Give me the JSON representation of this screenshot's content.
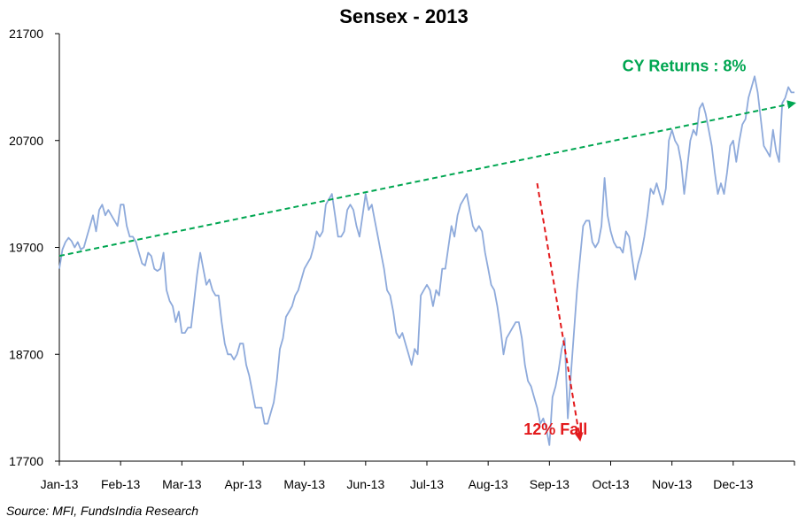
{
  "chart_data": {
    "type": "line",
    "title": "Sensex - 2013",
    "xlabel": "",
    "ylabel": "",
    "ylim": [
      17700,
      21700
    ],
    "yticks": [
      "21700",
      "20700",
      "19700",
      "18700",
      "17700"
    ],
    "categories": [
      "Jan-13",
      "Feb-13",
      "Mar-13",
      "Apr-13",
      "May-13",
      "Jun-13",
      "Jul-13",
      "Aug-13",
      "Sep-13",
      "Oct-13",
      "Nov-13",
      "Dec-13"
    ],
    "grid": false,
    "line_color": "#8eaadb",
    "series": [
      {
        "x": [
          0,
          0.05,
          0.1,
          0.15,
          0.2,
          0.25,
          0.3,
          0.35,
          0.4,
          0.45,
          0.5,
          0.55,
          0.6,
          0.65,
          0.7,
          0.75,
          0.8,
          0.85,
          0.9,
          0.95,
          1.0,
          1.05,
          1.1,
          1.15,
          1.2,
          1.25,
          1.3,
          1.35,
          1.4,
          1.45,
          1.5,
          1.55,
          1.6,
          1.65,
          1.7,
          1.75,
          1.8,
          1.85,
          1.9,
          1.95,
          2.0,
          2.05,
          2.1,
          2.15,
          2.2,
          2.25,
          2.3,
          2.35,
          2.4,
          2.45,
          2.5,
          2.55,
          2.6,
          2.65,
          2.7,
          2.75,
          2.8,
          2.85,
          2.9,
          2.95,
          3.0,
          3.05,
          3.1,
          3.15,
          3.2,
          3.25,
          3.3,
          3.35,
          3.4,
          3.45,
          3.5,
          3.55,
          3.6,
          3.65,
          3.7,
          3.75,
          3.8,
          3.85,
          3.9,
          3.95,
          4.0,
          4.05,
          4.1,
          4.15,
          4.2,
          4.25,
          4.3,
          4.35,
          4.4,
          4.45,
          4.5,
          4.55,
          4.6,
          4.65,
          4.7,
          4.75,
          4.8,
          4.85,
          4.9,
          4.95,
          5.0,
          5.05,
          5.1,
          5.15,
          5.2,
          5.25,
          5.3,
          5.35,
          5.4,
          5.45,
          5.5,
          5.55,
          5.6,
          5.65,
          5.7,
          5.75,
          5.8,
          5.85,
          5.9,
          5.95,
          6.0,
          6.05,
          6.1,
          6.15,
          6.2,
          6.25,
          6.3,
          6.35,
          6.4,
          6.45,
          6.5,
          6.55,
          6.6,
          6.65,
          6.7,
          6.75,
          6.8,
          6.85,
          6.9,
          6.95,
          7.0,
          7.05,
          7.1,
          7.15,
          7.2,
          7.25,
          7.3,
          7.35,
          7.4,
          7.45,
          7.5,
          7.55,
          7.6,
          7.65,
          7.7,
          7.75,
          7.8,
          7.85,
          7.9,
          7.95,
          8.0,
          8.05,
          8.1,
          8.15,
          8.2,
          8.25,
          8.3,
          8.35,
          8.4,
          8.45,
          8.5,
          8.55,
          8.6,
          8.65,
          8.7,
          8.75,
          8.8,
          8.85,
          8.9,
          8.95,
          9.0,
          9.05,
          9.1,
          9.15,
          9.2,
          9.25,
          9.3,
          9.35,
          9.4,
          9.45,
          9.5,
          9.55,
          9.6,
          9.65,
          9.7,
          9.75,
          9.8,
          9.85,
          9.9,
          9.95,
          10.0,
          10.05,
          10.1,
          10.15,
          10.2,
          10.25,
          10.3,
          10.35,
          10.4,
          10.45,
          10.5,
          10.55,
          10.6,
          10.65,
          10.7,
          10.75,
          10.8,
          10.85,
          10.9,
          10.95,
          11.0,
          11.05,
          11.1,
          11.15,
          11.2,
          11.25,
          11.3,
          11.35,
          11.4,
          11.45,
          11.5,
          11.55,
          11.6,
          11.65,
          11.7,
          11.75,
          11.8,
          11.85,
          11.9,
          11.95,
          12.0
        ],
        "y": [
          19500,
          19680,
          19750,
          19790,
          19760,
          19700,
          19750,
          19680,
          19700,
          19800,
          19900,
          20000,
          19850,
          20050,
          20100,
          20000,
          20050,
          20000,
          19950,
          19900,
          20100,
          20100,
          19900,
          19800,
          19800,
          19750,
          19650,
          19550,
          19530,
          19650,
          19620,
          19500,
          19480,
          19500,
          19650,
          19300,
          19200,
          19150,
          19000,
          19100,
          18900,
          18900,
          18950,
          18950,
          19200,
          19450,
          19650,
          19500,
          19350,
          19400,
          19300,
          19250,
          19250,
          19000,
          18800,
          18700,
          18700,
          18650,
          18700,
          18800,
          18800,
          18600,
          18500,
          18350,
          18200,
          18200,
          18200,
          18050,
          18050,
          18150,
          18250,
          18450,
          18750,
          18850,
          19050,
          19100,
          19150,
          19250,
          19300,
          19400,
          19500,
          19550,
          19600,
          19700,
          19850,
          19800,
          19850,
          20100,
          20150,
          20200,
          20000,
          19800,
          19800,
          19850,
          20050,
          20100,
          20050,
          19900,
          19800,
          20000,
          20200,
          20050,
          20100,
          19950,
          19800,
          19650,
          19500,
          19300,
          19250,
          19100,
          18900,
          18850,
          18900,
          18800,
          18700,
          18600,
          18750,
          18700,
          19250,
          19300,
          19350,
          19300,
          19150,
          19300,
          19250,
          19500,
          19500,
          19700,
          19900,
          19800,
          20000,
          20100,
          20150,
          20200,
          20050,
          19900,
          19850,
          19900,
          19850,
          19650,
          19500,
          19350,
          19300,
          19150,
          18950,
          18700,
          18850,
          18900,
          18950,
          19000,
          19000,
          18850,
          18600,
          18450,
          18400,
          18300,
          18200,
          18050,
          18100,
          18000,
          17850,
          18300,
          18400,
          18550,
          18750,
          18850,
          18100,
          18500,
          18900,
          19300,
          19600,
          19900,
          19950,
          19950,
          19750,
          19700,
          19750,
          19900,
          20350,
          20000,
          19850,
          19750,
          19700,
          19700,
          19650,
          19850,
          19800,
          19600,
          19400,
          19550,
          19650,
          19800,
          20000,
          20250,
          20200,
          20300,
          20200,
          20100,
          20250,
          20700,
          20800,
          20700,
          20650,
          20500,
          20200,
          20450,
          20700,
          20800,
          20750,
          21000,
          21050,
          20950,
          20800,
          20650,
          20400,
          20200,
          20300,
          20200,
          20400,
          20650,
          20700,
          20500,
          20700,
          20850,
          20900,
          21100,
          21200,
          21300,
          21150,
          20900,
          20650,
          20600,
          20550,
          20800,
          20600,
          20500,
          21050,
          21100,
          21200,
          21150,
          21150
        ]
      }
    ],
    "trend_line": {
      "from": {
        "x": 0.0,
        "y": 19620
      },
      "to": {
        "x": 12.0,
        "y": 21050
      },
      "color": "#00a651"
    },
    "fall_line": {
      "from": {
        "x": 7.8,
        "y": 20300
      },
      "to": {
        "x": 8.5,
        "y": 17900
      },
      "color": "#e31a1c"
    },
    "annotations": [
      {
        "text": "CY Returns : 8%",
        "color": "#00a651",
        "x": 10.2,
        "y": 21350
      },
      {
        "text": "12% Fall",
        "color": "#e31a1c",
        "x": 8.1,
        "y": 17950
      }
    ]
  },
  "source": "Source: MFI, FundsIndia Research"
}
